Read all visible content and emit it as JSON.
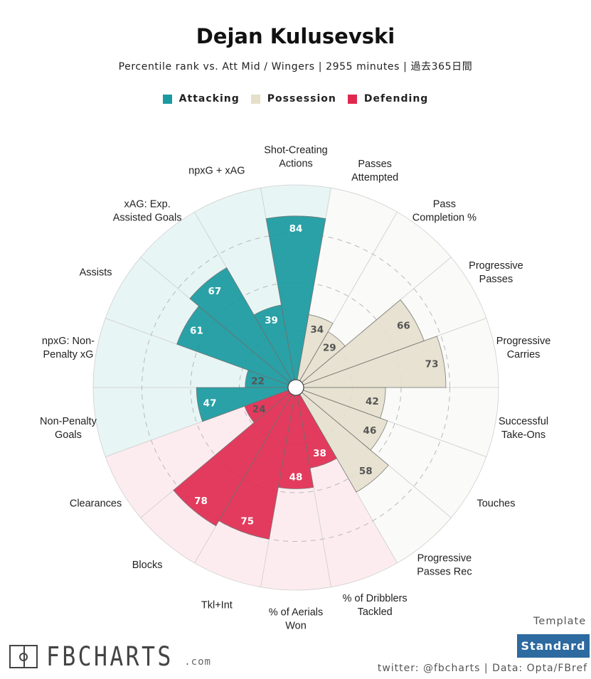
{
  "title": "Dejan Kulusevski",
  "subtitle": "Percentile rank vs. Att Mid / Wingers | 2955 minutes | 過去365日間",
  "legend": [
    {
      "label": "Attacking",
      "color": "#1a9aa0"
    },
    {
      "label": "Possession",
      "color": "#e6dfc9"
    },
    {
      "label": "Defending",
      "color": "#e0284f"
    }
  ],
  "template": {
    "label": "Template",
    "button": "Standard"
  },
  "credits": "twitter: @fbcharts | Data: Opta/FBref",
  "logo": {
    "text": "FBCHARTS",
    "suffix": ".com"
  },
  "colors": {
    "attacking_bar": "#1a9aa0",
    "attacking_bg": "#e8f5f5",
    "possession_bar": "#e6e0cd",
    "possession_bg": "#fafaf8",
    "defending_bar": "#e0284f",
    "defending_bg": "#fdecef"
  },
  "chart_data": {
    "type": "polar-bar",
    "rlim": [
      0,
      100
    ],
    "categories": [
      {
        "label": "Shot-Creating\nActions",
        "value": 84,
        "group": "attacking"
      },
      {
        "label": "Passes\nAttempted",
        "value": 34,
        "group": "possession"
      },
      {
        "label": "Pass\nCompletion %",
        "value": 29,
        "group": "possession"
      },
      {
        "label": "Progressive\nPasses",
        "value": 66,
        "group": "possession"
      },
      {
        "label": "Progressive\nCarries",
        "value": 73,
        "group": "possession"
      },
      {
        "label": "Successful\nTake-Ons",
        "value": 42,
        "group": "possession"
      },
      {
        "label": "Touches",
        "value": 46,
        "group": "possession"
      },
      {
        "label": "Progressive\nPasses Rec",
        "value": 58,
        "group": "possession"
      },
      {
        "label": "% of Dribblers\nTackled",
        "value": 38,
        "group": "defending"
      },
      {
        "label": "% of Aerials\nWon",
        "value": 48,
        "group": "defending"
      },
      {
        "label": "Tkl+Int",
        "value": 75,
        "group": "defending"
      },
      {
        "label": "Blocks",
        "value": 78,
        "group": "defending"
      },
      {
        "label": "Clearances",
        "value": 24,
        "group": "defending"
      },
      {
        "label": "Non-Penalty\nGoals",
        "value": 47,
        "group": "attacking"
      },
      {
        "label": "npxG: Non-\nPenalty xG",
        "value": 22,
        "group": "attacking"
      },
      {
        "label": "Assists",
        "value": 61,
        "group": "attacking"
      },
      {
        "label": "xAG: Exp.\nAssisted Goals",
        "value": 67,
        "group": "attacking"
      },
      {
        "label": "npxG + xAG",
        "value": 39,
        "group": "attacking"
      }
    ]
  }
}
